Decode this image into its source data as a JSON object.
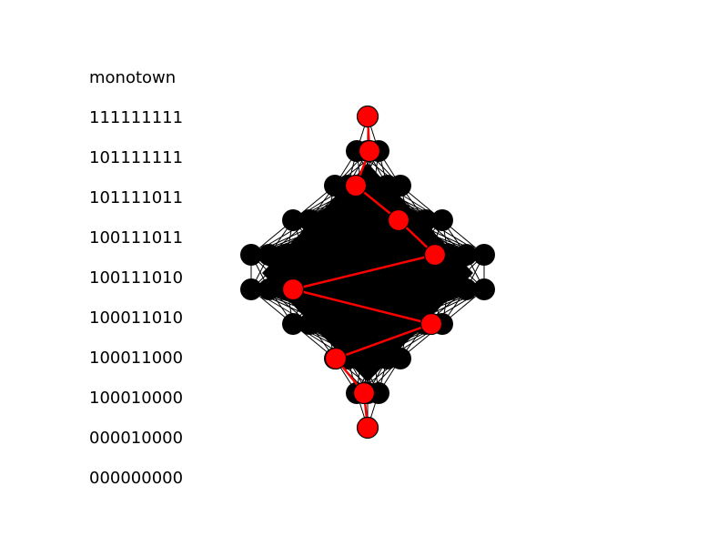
{
  "title": "monotown",
  "levels": [
    "111111111",
    "101111111",
    "101111011",
    "100111011",
    "100111010",
    "100011010",
    "100011000",
    "100010000",
    "000010000",
    "000000000"
  ],
  "colors": {
    "edge": "#000000",
    "path": "#ff0000",
    "highlight_node_fill": "#ff0000",
    "highlight_node_stroke": "#000000"
  }
}
